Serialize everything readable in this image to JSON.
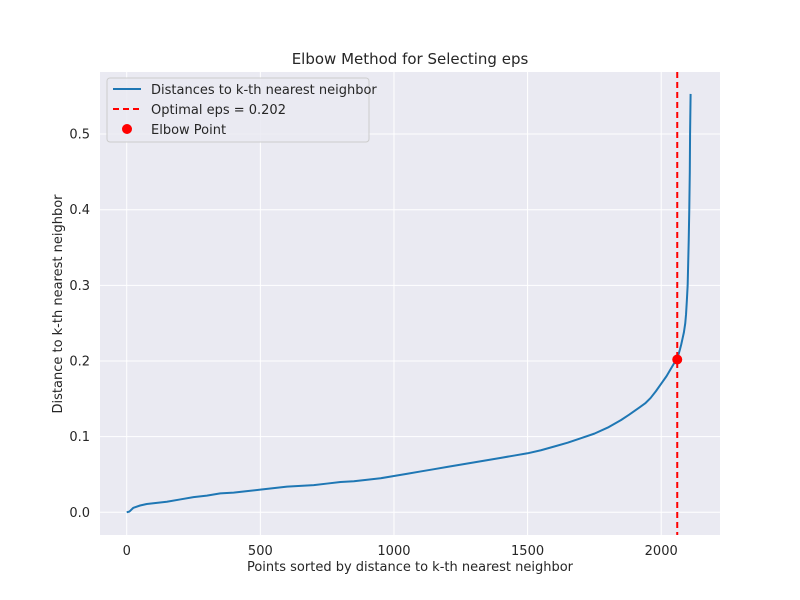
{
  "chart_data": {
    "type": "line",
    "title": "Elbow Method for Selecting eps",
    "xlabel": "Points sorted by distance to k-th nearest neighbor",
    "ylabel": "Distance to k-th nearest neighbor",
    "xlim": [
      -100,
      2220
    ],
    "ylim": [
      -0.03,
      0.582
    ],
    "xticks": [
      0,
      500,
      1000,
      1500,
      2000
    ],
    "yticks": [
      0.0,
      0.1,
      0.2,
      0.3,
      0.4,
      0.5
    ],
    "xtick_labels": [
      "0",
      "500",
      "1000",
      "1500",
      "2000"
    ],
    "ytick_labels": [
      "0.0",
      "0.1",
      "0.2",
      "0.3",
      "0.4",
      "0.5"
    ],
    "grid": true,
    "legend_position": "top-left",
    "series": [
      {
        "name": "Distances to k-th nearest neighbor",
        "color": "#1f77b4",
        "x": [
          0,
          10,
          25,
          50,
          75,
          100,
          150,
          200,
          250,
          300,
          350,
          400,
          450,
          500,
          550,
          600,
          650,
          700,
          750,
          800,
          850,
          900,
          950,
          1000,
          1050,
          1100,
          1150,
          1200,
          1250,
          1300,
          1350,
          1400,
          1450,
          1500,
          1550,
          1600,
          1650,
          1700,
          1750,
          1800,
          1850,
          1880,
          1900,
          1920,
          1940,
          1960,
          1980,
          2000,
          2020,
          2040,
          2050,
          2060,
          2065,
          2070,
          2075,
          2080,
          2085,
          2090,
          2093,
          2096,
          2099,
          2101,
          2103,
          2105,
          2107,
          2108,
          2110
        ],
        "values": [
          0.0,
          0.001,
          0.006,
          0.009,
          0.011,
          0.012,
          0.014,
          0.017,
          0.02,
          0.022,
          0.025,
          0.026,
          0.028,
          0.03,
          0.032,
          0.034,
          0.035,
          0.036,
          0.038,
          0.04,
          0.041,
          0.043,
          0.045,
          0.048,
          0.051,
          0.054,
          0.057,
          0.06,
          0.063,
          0.066,
          0.069,
          0.072,
          0.075,
          0.078,
          0.082,
          0.087,
          0.092,
          0.098,
          0.104,
          0.112,
          0.122,
          0.129,
          0.134,
          0.139,
          0.144,
          0.151,
          0.16,
          0.17,
          0.18,
          0.192,
          0.198,
          0.202,
          0.209,
          0.215,
          0.222,
          0.23,
          0.238,
          0.25,
          0.262,
          0.28,
          0.3,
          0.33,
          0.36,
          0.4,
          0.45,
          0.5,
          0.553
        ]
      },
      {
        "name": "Optimal eps = 0.202",
        "color": "#ff0000",
        "style": "dashed",
        "vertical_x": 2060
      },
      {
        "name": "Elbow Point",
        "color": "#ff0000",
        "type": "scatter",
        "x": [
          2060
        ],
        "values": [
          0.202
        ]
      }
    ]
  }
}
